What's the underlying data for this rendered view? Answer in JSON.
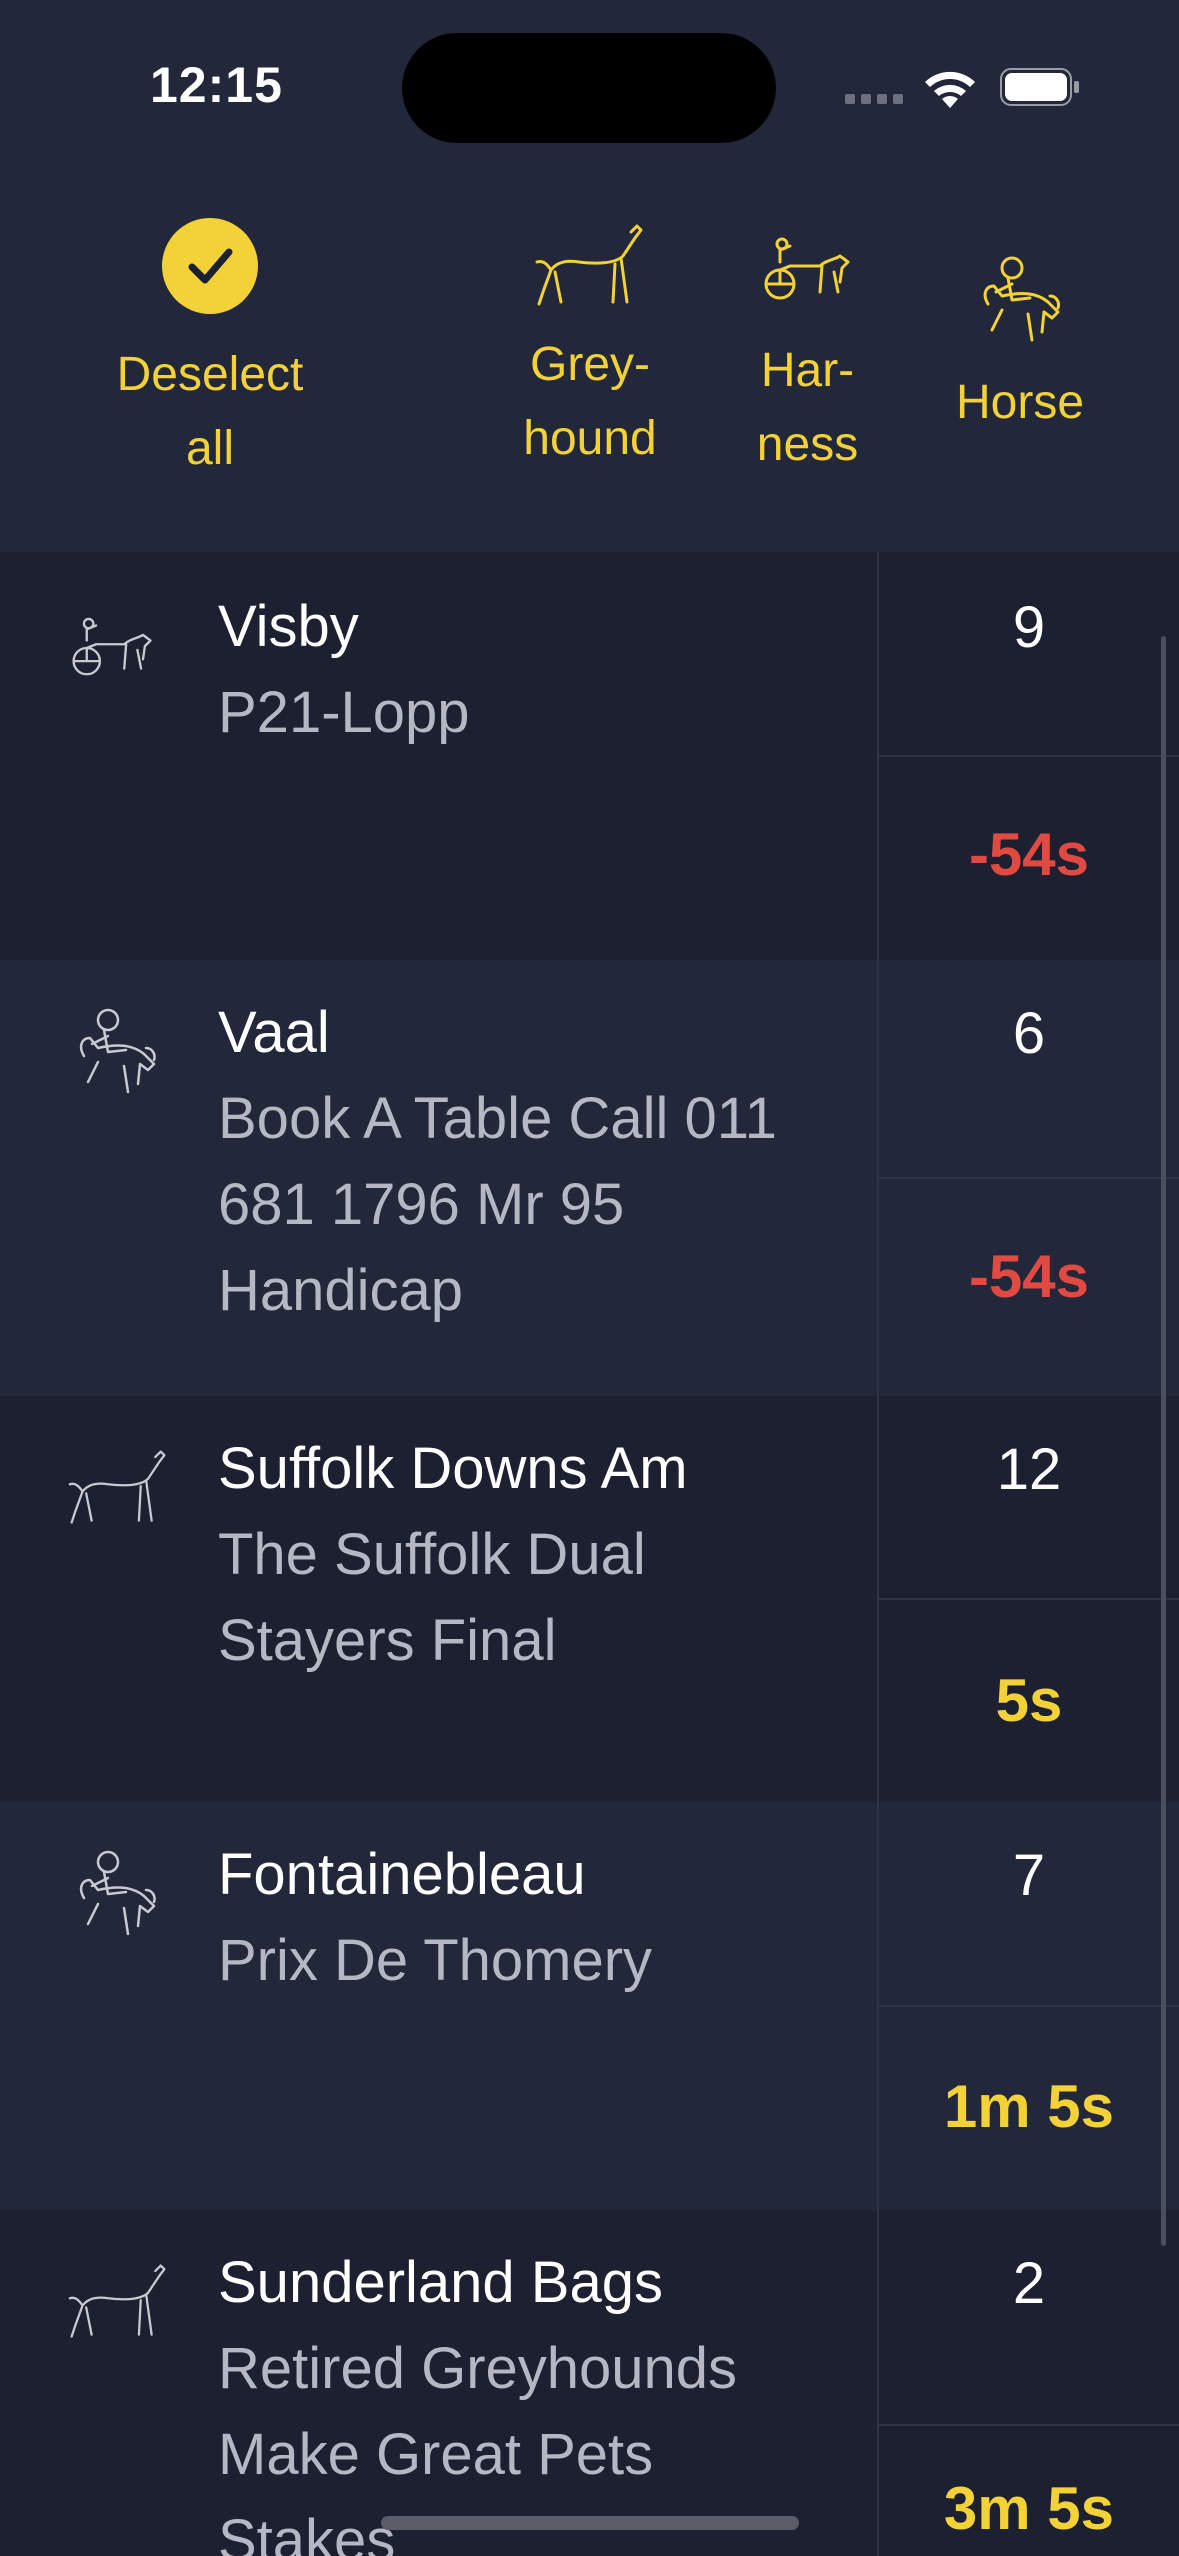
{
  "status": {
    "time": "12:15"
  },
  "filters": {
    "deselect": {
      "line1": "Deselect",
      "line2": "all",
      "icon": "check-icon"
    },
    "greyhound": {
      "line1": "Grey-",
      "line2": "hound",
      "icon": "greyhound-icon"
    },
    "harness": {
      "line1": "Har-",
      "line2": "ness",
      "icon": "harness-icon"
    },
    "horse": {
      "line1": "Horse",
      "icon": "horse-jockey-icon"
    }
  },
  "colors": {
    "accent": "#f2d237",
    "negative": "#e04a43",
    "background": "#1c2030",
    "background_alt": "#222739"
  },
  "races": [
    {
      "type": "harness",
      "venue": "Visby",
      "race_lines": [
        "P21-Lopp"
      ],
      "runners": "9",
      "countdown": "-54s",
      "status": "red"
    },
    {
      "type": "horse",
      "venue": "Vaal",
      "race_lines": [
        "Book A Table Call 011",
        "681 1796 Mr 95",
        "Handicap"
      ],
      "runners": "6",
      "countdown": "-54s",
      "status": "red"
    },
    {
      "type": "greyhound",
      "venue": "Suffolk Downs Am",
      "race_lines": [
        "The Suffolk Dual",
        "Stayers Final"
      ],
      "runners": "12",
      "countdown": "5s",
      "status": "yellow"
    },
    {
      "type": "horse",
      "venue": "Fontainebleau",
      "race_lines": [
        "Prix De Thomery"
      ],
      "runners": "7",
      "countdown": "1m 5s",
      "status": "yellow"
    },
    {
      "type": "greyhound",
      "venue": "Sunderland Bags",
      "race_lines": [
        "Retired Greyhounds",
        "Make Great Pets",
        "Stakes"
      ],
      "runners": "2",
      "countdown": "3m 5s",
      "status": "yellow"
    }
  ]
}
